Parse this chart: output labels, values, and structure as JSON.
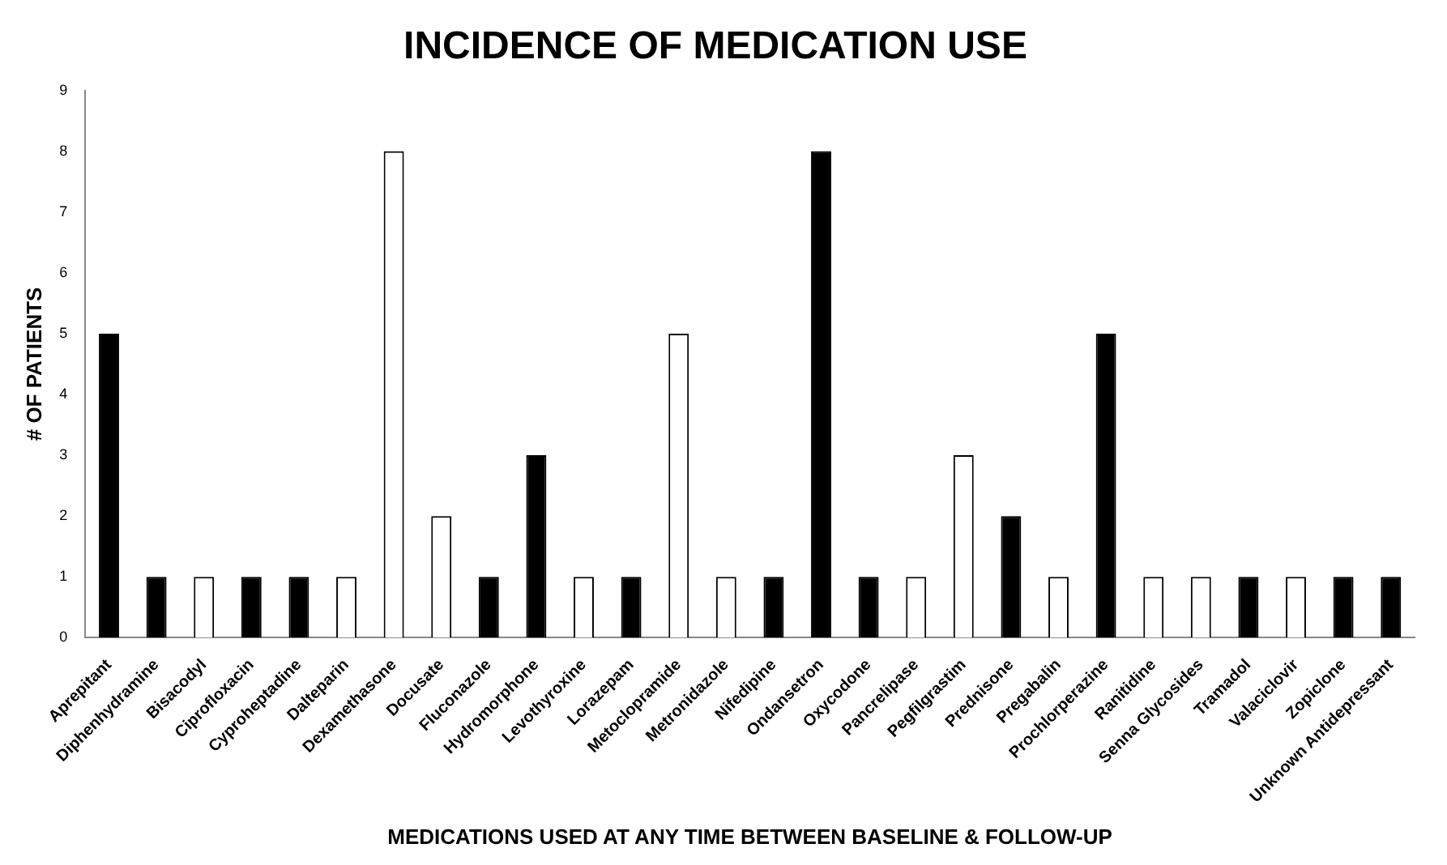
{
  "chart_data": {
    "type": "bar",
    "title": "INCIDENCE OF MEDICATION USE",
    "xlabel": "MEDICATIONS USED AT ANY TIME BETWEEN BASELINE & FOLLOW-UP",
    "ylabel": "# OF PATIENTS",
    "categories": [
      "Aprepitant",
      "Diphenhydramine",
      "Bisacodyl",
      "Ciprofloxacin",
      "Cyproheptadine",
      "Dalteparin",
      "Dexamethasone",
      "Docusate",
      "Fluconazole",
      "Hydromorphone",
      "Levothyroxine",
      "Lorazepam",
      "Metoclopramide",
      "Metronidazole",
      "Nifedipine",
      "Ondansetron",
      "Oxycodone",
      "Pancrelipase",
      "Pegfilgrastim",
      "Prednisone",
      "Pregabalin",
      "Prochlorperazine",
      "Ranitidine",
      "Senna Glycosides",
      "Tramadol",
      "Valaciclovir",
      "Zopiclone",
      "Unknown Antidepressant"
    ],
    "values": [
      5,
      1,
      1,
      1,
      1,
      1,
      8,
      2,
      1,
      3,
      1,
      1,
      5,
      1,
      1,
      8,
      1,
      1,
      3,
      2,
      1,
      5,
      1,
      1,
      1,
      1,
      1,
      1
    ],
    "colors": [
      "#000000",
      "#000000",
      "#ffffff",
      "#000000",
      "#000000",
      "#ffffff",
      "#ffffff",
      "#ffffff",
      "#000000",
      "#000000",
      "#ffffff",
      "#000000",
      "#ffffff",
      "#ffffff",
      "#000000",
      "#000000",
      "#000000",
      "#ffffff",
      "#ffffff",
      "#000000",
      "#ffffff",
      "#000000",
      "#ffffff",
      "#ffffff",
      "#000000",
      "#ffffff",
      "#000000",
      "#000000"
    ],
    "ylim": [
      0,
      9
    ],
    "yticks": [
      0,
      1,
      2,
      3,
      4,
      5,
      6,
      7,
      8,
      9
    ],
    "grid": false,
    "legend": false
  }
}
